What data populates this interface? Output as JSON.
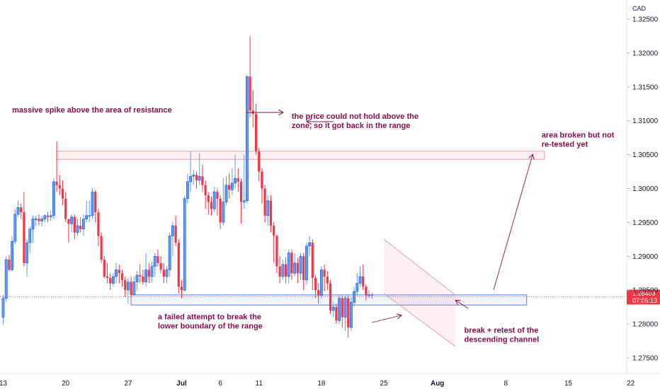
{
  "chart_data": {
    "type": "candlestick",
    "currency": "CAD",
    "y_ticks": [
      1.325,
      1.32,
      1.315,
      1.31,
      1.305,
      1.3,
      1.295,
      1.29,
      1.285,
      1.28,
      1.275
    ],
    "y_tick_labels": [
      "1.32500",
      "1.32000",
      "1.31500",
      "1.31000",
      "1.30500",
      "1.30000",
      "1.29500",
      "1.29000",
      "1.28500",
      "1.28000",
      "1.27500"
    ],
    "x_tick_labels": [
      {
        "label": "13",
        "t": 0
      },
      {
        "label": "20",
        "t": 21
      },
      {
        "label": "27",
        "t": 42
      },
      {
        "label": "Jul",
        "t": 60,
        "bold": true
      },
      {
        "label": "6",
        "t": 73
      },
      {
        "label": "11",
        "t": 86
      },
      {
        "label": "18",
        "t": 107
      },
      {
        "label": "25",
        "t": 128
      },
      {
        "label": "Aug",
        "t": 146,
        "bold": true
      },
      {
        "label": "8",
        "t": 169
      },
      {
        "label": "15",
        "t": 190
      },
      {
        "label": "22",
        "t": 211
      }
    ],
    "last_price": {
      "value": 1.28403,
      "label": "1.28403",
      "countdown": "07:05:13",
      "color": "#f23645"
    },
    "colors": {
      "up": "#5b9cf6",
      "up_border": "#1e53e5",
      "down": "#f23645",
      "resistance": "#e8a0a8",
      "support": "#5b7fd9",
      "channel": "#e8a0a8",
      "annotation": "#880e4f"
    },
    "zones": [
      {
        "name": "resistance",
        "y_top": 1.3055,
        "y_bottom": 1.3043,
        "t_start": 18,
        "t_end": 182
      },
      {
        "name": "support",
        "y_top": 1.2843,
        "y_bottom": 1.2828,
        "t_start": 43,
        "t_end": 176
      }
    ],
    "channel": {
      "upper": [
        [
          128,
          1.2925
        ],
        [
          152,
          1.2843
        ]
      ],
      "lower": [
        [
          128,
          1.2845
        ],
        [
          152,
          1.2767
        ]
      ]
    },
    "candles": [
      [
        1.281,
        1.2838,
        1.28,
        1.2843
      ],
      [
        1.2838,
        1.2895,
        1.2833,
        1.29
      ],
      [
        1.2895,
        1.288,
        1.2878,
        1.2902
      ],
      [
        1.288,
        1.2922,
        1.2877,
        1.293
      ],
      [
        1.2922,
        1.2962,
        1.2918,
        1.297
      ],
      [
        1.2962,
        1.2972,
        1.2958,
        1.2982
      ],
      [
        1.2972,
        1.2965,
        1.2955,
        1.2978
      ],
      [
        1.2965,
        1.289,
        1.2885,
        1.2995
      ],
      [
        1.289,
        1.292,
        1.287,
        1.2925
      ],
      [
        1.292,
        1.294,
        1.2905,
        1.2944
      ],
      [
        1.294,
        1.2955,
        1.292,
        1.296
      ],
      [
        1.2955,
        1.2955,
        1.2945,
        1.296
      ],
      [
        1.2955,
        1.2952,
        1.2946,
        1.2962
      ],
      [
        1.2952,
        1.2955,
        1.2944,
        1.296
      ],
      [
        1.2955,
        1.296,
        1.295,
        1.2962
      ],
      [
        1.296,
        1.2958,
        1.295,
        1.2965
      ],
      [
        1.2958,
        1.296,
        1.2952,
        1.2968
      ],
      [
        1.296,
        1.301,
        1.2955,
        1.3015
      ],
      [
        1.301,
        1.3005,
        1.2995,
        1.307
      ],
      [
        1.3005,
        1.3,
        1.299,
        1.302
      ],
      [
        1.3,
        1.2985,
        1.2975,
        1.3012
      ],
      [
        1.2985,
        1.2955,
        1.295,
        1.2995
      ],
      [
        1.2955,
        1.2948,
        1.292,
        1.2955
      ],
      [
        1.2948,
        1.2958,
        1.2935,
        1.2962
      ],
      [
        1.2958,
        1.2935,
        1.2925,
        1.2962
      ],
      [
        1.2935,
        1.2945,
        1.293,
        1.2955
      ],
      [
        1.2945,
        1.294,
        1.2935,
        1.2958
      ],
      [
        1.294,
        1.2955,
        1.293,
        1.2962
      ],
      [
        1.2955,
        1.296,
        1.295,
        1.2982
      ],
      [
        1.296,
        1.296,
        1.295,
        1.2982
      ],
      [
        1.296,
        1.2995,
        1.2955,
        1.3
      ],
      [
        1.2995,
        1.2965,
        1.295,
        1.2998
      ],
      [
        1.2965,
        1.293,
        1.2915,
        1.297
      ],
      [
        1.293,
        1.2895,
        1.289,
        1.2935
      ],
      [
        1.2895,
        1.287,
        1.2868,
        1.29
      ],
      [
        1.287,
        1.2868,
        1.286,
        1.289
      ],
      [
        1.2868,
        1.286,
        1.285,
        1.2875
      ],
      [
        1.286,
        1.287,
        1.2855,
        1.2875
      ],
      [
        1.287,
        1.288,
        1.286,
        1.289
      ],
      [
        1.288,
        1.2875,
        1.286,
        1.2888
      ],
      [
        1.2875,
        1.2865,
        1.2855,
        1.288
      ],
      [
        1.2865,
        1.285,
        1.284,
        1.287
      ],
      [
        1.285,
        1.2862,
        1.283,
        1.2868
      ],
      [
        1.2862,
        1.2843,
        1.2838,
        1.287
      ],
      [
        1.2843,
        1.2862,
        1.2842,
        1.287
      ],
      [
        1.2862,
        1.2872,
        1.285,
        1.2878
      ],
      [
        1.2872,
        1.287,
        1.286,
        1.2888
      ],
      [
        1.287,
        1.2862,
        1.2858,
        1.288
      ],
      [
        1.2862,
        1.288,
        1.2855,
        1.2905
      ],
      [
        1.288,
        1.287,
        1.286,
        1.289
      ],
      [
        1.287,
        1.2885,
        1.2862,
        1.2892
      ],
      [
        1.2885,
        1.29,
        1.287,
        1.2905
      ],
      [
        1.29,
        1.289,
        1.2885,
        1.291
      ],
      [
        1.289,
        1.288,
        1.2875,
        1.29
      ],
      [
        1.288,
        1.287,
        1.286,
        1.289
      ],
      [
        1.287,
        1.288,
        1.286,
        1.2885
      ],
      [
        1.288,
        1.293,
        1.287,
        1.2935
      ],
      [
        1.293,
        1.2945,
        1.29,
        1.295
      ],
      [
        1.2945,
        1.292,
        1.2915,
        1.296
      ],
      [
        1.292,
        1.2855,
        1.2845,
        1.2925
      ],
      [
        1.2855,
        1.285,
        1.2838,
        1.2865
      ],
      [
        1.285,
        1.2985,
        1.2848,
        1.299
      ],
      [
        1.2985,
        1.301,
        1.2978,
        1.3022
      ],
      [
        1.301,
        1.3018,
        1.2995,
        1.3055
      ],
      [
        1.3018,
        1.302,
        1.3005,
        1.3028
      ],
      [
        1.302,
        1.3012,
        1.3,
        1.3025
      ],
      [
        1.3012,
        1.3018,
        1.3005,
        1.3052
      ],
      [
        1.3018,
        1.3005,
        1.2995,
        1.3035
      ],
      [
        1.3005,
        1.299,
        1.297,
        1.3012
      ],
      [
        1.299,
        1.298,
        1.2962,
        1.2995
      ],
      [
        1.298,
        1.297,
        1.296,
        1.2988
      ],
      [
        1.297,
        1.2995,
        1.2965,
        1.3002
      ],
      [
        1.2995,
        1.2985,
        1.296,
        1.3
      ],
      [
        1.2985,
        1.295,
        1.294,
        1.299
      ],
      [
        1.295,
        1.298,
        1.2945,
        1.3015
      ],
      [
        1.298,
        1.3005,
        1.2975,
        1.3018
      ],
      [
        1.3005,
        1.2998,
        1.2985,
        1.3022
      ],
      [
        1.2998,
        1.3008,
        1.299,
        1.303
      ],
      [
        1.3008,
        1.3015,
        1.3,
        1.305
      ],
      [
        1.3015,
        1.301,
        1.2995,
        1.303
      ],
      [
        1.301,
        1.298,
        1.2948,
        1.3015
      ],
      [
        1.298,
        1.2982,
        1.297,
        1.305
      ],
      [
        1.2982,
        1.3165,
        1.2978,
        1.3168
      ],
      [
        1.3165,
        1.3115,
        1.3105,
        1.3225
      ],
      [
        1.3115,
        1.311,
        1.309,
        1.3145
      ],
      [
        1.311,
        1.3055,
        1.305,
        1.3125
      ],
      [
        1.3055,
        1.3025,
        1.301,
        1.306
      ],
      [
        1.3025,
        1.3,
        1.2978,
        1.303
      ],
      [
        1.3,
        1.296,
        1.295,
        1.3005
      ],
      [
        1.296,
        1.2982,
        1.2945,
        1.299
      ],
      [
        1.2982,
        1.2945,
        1.2935,
        1.299
      ],
      [
        1.2945,
        1.293,
        1.289,
        1.295
      ],
      [
        1.293,
        1.2885,
        1.2875,
        1.2932
      ],
      [
        1.2885,
        1.287,
        1.286,
        1.29
      ],
      [
        1.287,
        1.2888,
        1.2865,
        1.2895
      ],
      [
        1.2888,
        1.287,
        1.286,
        1.2898
      ],
      [
        1.287,
        1.2905,
        1.286,
        1.291
      ],
      [
        1.2905,
        1.2875,
        1.2865,
        1.291
      ],
      [
        1.2875,
        1.289,
        1.287,
        1.2905
      ],
      [
        1.289,
        1.2875,
        1.286,
        1.2898
      ],
      [
        1.2875,
        1.29,
        1.2865,
        1.2905
      ],
      [
        1.29,
        1.2865,
        1.285,
        1.2905
      ],
      [
        1.2865,
        1.2915,
        1.2858,
        1.292
      ],
      [
        1.2915,
        1.292,
        1.29,
        1.293
      ],
      [
        1.292,
        1.2868,
        1.285,
        1.2925
      ],
      [
        1.2868,
        1.285,
        1.2838,
        1.2872
      ],
      [
        1.285,
        1.2842,
        1.283,
        1.286
      ],
      [
        1.2842,
        1.288,
        1.2838,
        1.2885
      ],
      [
        1.288,
        1.287,
        1.2848,
        1.2888
      ],
      [
        1.287,
        1.286,
        1.285,
        1.2878
      ],
      [
        1.286,
        1.282,
        1.2815,
        1.2865
      ],
      [
        1.282,
        1.2825,
        1.281,
        1.2832
      ],
      [
        1.2825,
        1.2805,
        1.28,
        1.283
      ],
      [
        1.2805,
        1.2838,
        1.28,
        1.2842
      ],
      [
        1.2838,
        1.281,
        1.2795,
        1.2842
      ],
      [
        1.281,
        1.2838,
        1.279,
        1.2842
      ],
      [
        1.2838,
        1.2795,
        1.278,
        1.2842
      ],
      [
        1.2795,
        1.2832,
        1.279,
        1.284
      ],
      [
        1.2832,
        1.2848,
        1.2825,
        1.2855
      ],
      [
        1.2848,
        1.286,
        1.2842,
        1.2875
      ],
      [
        1.286,
        1.287,
        1.2855,
        1.2885
      ],
      [
        1.287,
        1.2855,
        1.285,
        1.2888
      ],
      [
        1.2855,
        1.2842,
        1.2835,
        1.2858
      ],
      [
        1.2842,
        1.2843,
        1.2838,
        1.285
      ],
      [
        1.2843,
        1.2842,
        1.2838,
        1.2846
      ]
    ],
    "annotations": [
      {
        "lines": [
          "massive spike above the area of resistance"
        ],
        "t": 3,
        "y": 1.3112,
        "anchor": "start"
      },
      {
        "lines": [
          "the price could not hold above the",
          "zone, so it got back in the range"
        ],
        "t": 97,
        "y": 1.3103,
        "anchor": "start"
      },
      {
        "lines": [
          "area broken but not",
          "re-tested yet"
        ],
        "t": 181,
        "y": 1.3075,
        "anchor": "start"
      },
      {
        "lines": [
          "a failed attempt to break the",
          "lower boundary of the range"
        ],
        "t": 52,
        "y": 1.2807,
        "anchor": "start"
      },
      {
        "lines": [
          "break + retest of the",
          "descending channel"
        ],
        "t": 155,
        "y": 1.2787,
        "anchor": "start"
      }
    ]
  }
}
